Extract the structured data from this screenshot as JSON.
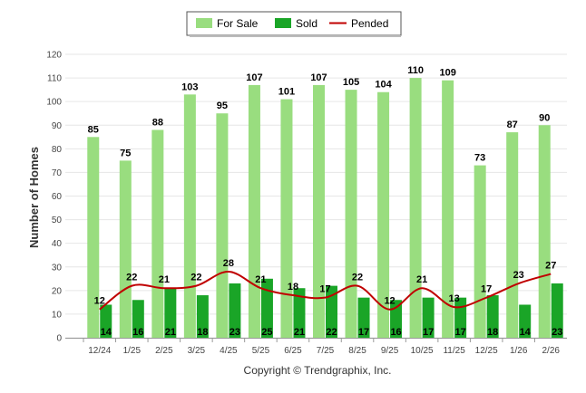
{
  "chart_data": {
    "type": "bar",
    "categories": [
      "12/24",
      "1/25",
      "2/25",
      "3/25",
      "4/25",
      "5/25",
      "6/25",
      "7/25",
      "8/25",
      "9/25",
      "10/25",
      "11/25",
      "12/25",
      "1/26",
      "2/26"
    ],
    "series": [
      {
        "name": "For Sale",
        "type": "bar",
        "color": "#99dd7f",
        "values": [
          85,
          75,
          88,
          103,
          95,
          107,
          101,
          107,
          105,
          104,
          110,
          109,
          73,
          87,
          90
        ]
      },
      {
        "name": "Sold",
        "type": "bar",
        "color": "#1aa527",
        "values": [
          14,
          16,
          21,
          18,
          23,
          25,
          21,
          22,
          17,
          16,
          17,
          17,
          18,
          14,
          23
        ]
      },
      {
        "name": "Pended",
        "type": "line",
        "color": "#c00000",
        "values": [
          12,
          22,
          21,
          22,
          28,
          21,
          18,
          17,
          22,
          12,
          21,
          13,
          17,
          23,
          27
        ]
      }
    ],
    "title": "",
    "xlabel": "",
    "ylabel": "Number of Homes",
    "ylim": [
      0,
      120
    ],
    "yticks": [
      0,
      10,
      20,
      30,
      40,
      50,
      60,
      70,
      80,
      90,
      100,
      110,
      120
    ],
    "grid": true,
    "legend_position": "top-center"
  },
  "footer": {
    "copyright": "Copyright © Trendgraphix, Inc."
  }
}
